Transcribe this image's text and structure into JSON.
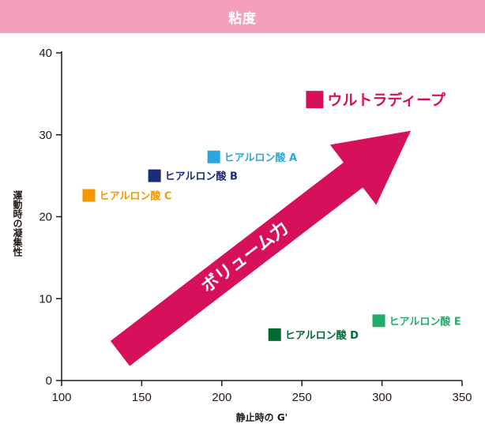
{
  "header": {
    "title": "粘度"
  },
  "chart_data": {
    "type": "scatter",
    "title": "粘度",
    "xlabel": "静止時の G'",
    "ylabel": "運動時の凝集性",
    "xlim": [
      100,
      350
    ],
    "ylim": [
      0,
      40
    ],
    "xticks": [
      "100",
      "150",
      "200",
      "250",
      "300",
      "350"
    ],
    "yticks": [
      "0",
      "10",
      "20",
      "30",
      "40"
    ],
    "points": [
      {
        "label": "ヒアルロン酸 A",
        "x": 195,
        "y": 27.3,
        "color": "#29a8e0"
      },
      {
        "label": "ヒアルロン酸 B",
        "x": 158,
        "y": 25.0,
        "color": "#1d2a7a"
      },
      {
        "label": "ヒアルロン酸 C",
        "x": 117,
        "y": 22.6,
        "color": "#f39800"
      },
      {
        "label": "ヒアルロン酸 D",
        "x": 233,
        "y": 5.6,
        "color": "#006934"
      },
      {
        "label": "ヒアルロン酸 E",
        "x": 298,
        "y": 7.3,
        "color": "#22ac6c"
      },
      {
        "label": "ウルトラディープ",
        "x": 258,
        "y": 34.3,
        "color": "#d6105a"
      }
    ],
    "annotation": {
      "text": "ボリューム力",
      "color": "#d6105a"
    }
  }
}
